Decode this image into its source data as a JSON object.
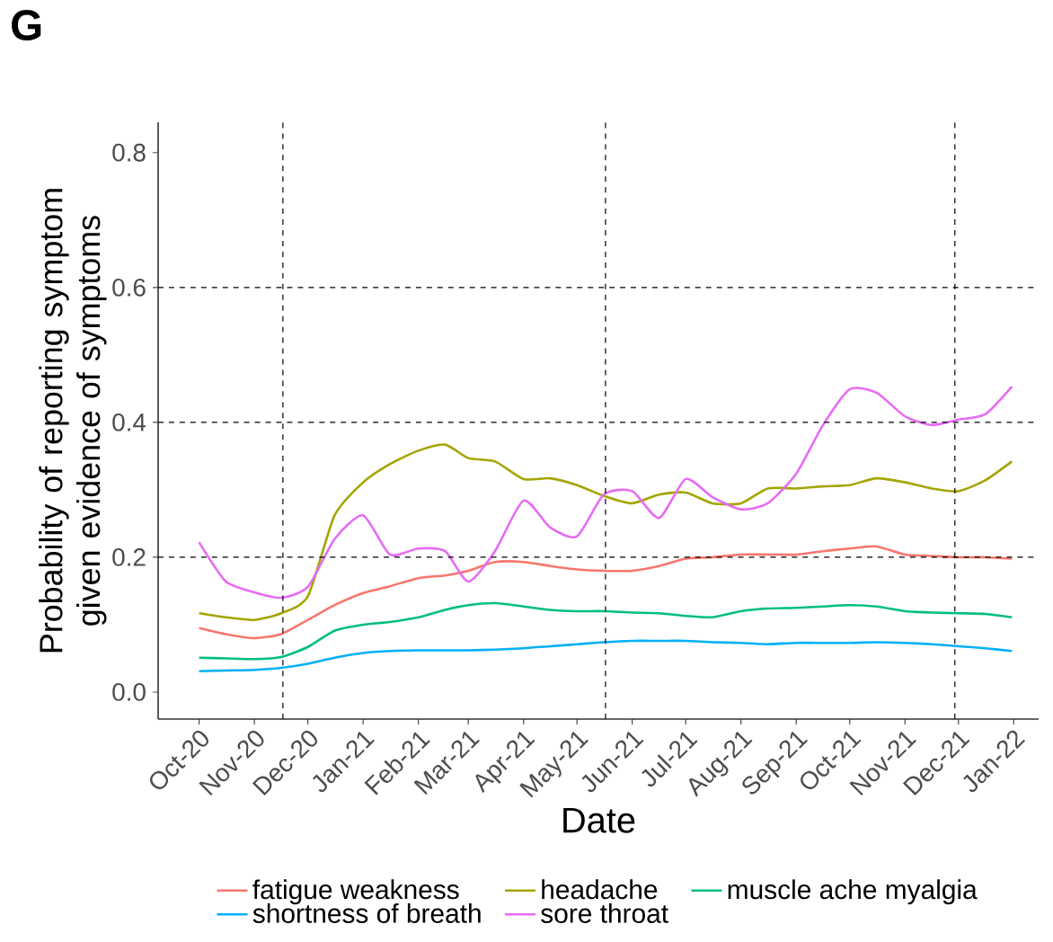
{
  "chart_data": {
    "type": "line",
    "annotations": [
      "G"
    ],
    "xlabel": "Date",
    "ylabel": "Probability of reporting symptom given evidence of symptoms",
    "x": [
      "2020-10-01",
      "2020-10-16",
      "2020-11-01",
      "2020-11-16",
      "2020-12-01",
      "2020-12-16",
      "2021-01-01",
      "2021-01-16",
      "2021-02-01",
      "2021-02-16",
      "2021-03-01",
      "2021-03-16",
      "2021-04-01",
      "2021-04-16",
      "2021-05-01",
      "2021-05-16",
      "2021-06-01",
      "2021-06-16",
      "2021-07-01",
      "2021-07-16",
      "2021-08-01",
      "2021-08-16",
      "2021-09-01",
      "2021-09-16",
      "2021-10-01",
      "2021-10-16",
      "2021-11-01",
      "2021-11-16",
      "2021-12-01",
      "2021-12-16",
      "2021-12-31"
    ],
    "series": [
      {
        "name": "fatigue weakness",
        "color": "#f8766d",
        "values": [
          0.095,
          0.086,
          0.08,
          0.086,
          0.107,
          0.129,
          0.147,
          0.157,
          0.169,
          0.173,
          0.18,
          0.193,
          0.193,
          0.187,
          0.182,
          0.18,
          0.18,
          0.187,
          0.198,
          0.2,
          0.204,
          0.204,
          0.204,
          0.209,
          0.213,
          0.216,
          0.204,
          0.202,
          0.2,
          0.2,
          0.198
        ]
      },
      {
        "name": "headache",
        "color": "#a3a500",
        "values": [
          0.117,
          0.111,
          0.107,
          0.117,
          0.142,
          0.262,
          0.311,
          0.338,
          0.358,
          0.367,
          0.347,
          0.342,
          0.316,
          0.317,
          0.307,
          0.291,
          0.28,
          0.293,
          0.296,
          0.28,
          0.28,
          0.302,
          0.302,
          0.305,
          0.307,
          0.317,
          0.311,
          0.302,
          0.298,
          0.314,
          0.342
        ]
      },
      {
        "name": "muscle ache myalgia",
        "color": "#00bf7d",
        "values": [
          0.051,
          0.05,
          0.049,
          0.052,
          0.067,
          0.091,
          0.1,
          0.104,
          0.111,
          0.122,
          0.129,
          0.132,
          0.127,
          0.122,
          0.12,
          0.12,
          0.118,
          0.117,
          0.113,
          0.111,
          0.12,
          0.124,
          0.125,
          0.127,
          0.129,
          0.127,
          0.12,
          0.118,
          0.117,
          0.116,
          0.111
        ]
      },
      {
        "name": "shortness of breath",
        "color": "#00b0f6",
        "values": [
          0.031,
          0.032,
          0.033,
          0.036,
          0.042,
          0.051,
          0.058,
          0.061,
          0.062,
          0.062,
          0.062,
          0.063,
          0.065,
          0.068,
          0.071,
          0.074,
          0.076,
          0.076,
          0.076,
          0.074,
          0.073,
          0.071,
          0.073,
          0.073,
          0.073,
          0.074,
          0.073,
          0.071,
          0.068,
          0.065,
          0.061
        ]
      },
      {
        "name": "sore throat",
        "color": "#e76bf3",
        "values": [
          0.222,
          0.164,
          0.148,
          0.14,
          0.156,
          0.227,
          0.262,
          0.204,
          0.213,
          0.209,
          0.164,
          0.209,
          0.284,
          0.244,
          0.231,
          0.293,
          0.298,
          0.258,
          0.316,
          0.289,
          0.271,
          0.28,
          0.324,
          0.396,
          0.449,
          0.444,
          0.409,
          0.396,
          0.404,
          0.412,
          0.453
        ]
      }
    ],
    "xlim": [
      "2020-09-08",
      "2022-01-15"
    ],
    "xticks": [
      {
        "value": "2020-10-01",
        "label": "Oct-20"
      },
      {
        "value": "2020-11-01",
        "label": "Nov-20"
      },
      {
        "value": "2020-12-01",
        "label": "Dec-20"
      },
      {
        "value": "2021-01-01",
        "label": "Jan-21"
      },
      {
        "value": "2021-02-01",
        "label": "Feb-21"
      },
      {
        "value": "2021-03-01",
        "label": "Mar-21"
      },
      {
        "value": "2021-04-01",
        "label": "Apr-21"
      },
      {
        "value": "2021-05-01",
        "label": "May-21"
      },
      {
        "value": "2021-06-01",
        "label": "Jun-21"
      },
      {
        "value": "2021-07-01",
        "label": "Jul-21"
      },
      {
        "value": "2021-08-01",
        "label": "Aug-21"
      },
      {
        "value": "2021-09-01",
        "label": "Sep-21"
      },
      {
        "value": "2021-10-01",
        "label": "Oct-21"
      },
      {
        "value": "2021-11-01",
        "label": "Nov-21"
      },
      {
        "value": "2021-12-01",
        "label": "Dec-21"
      },
      {
        "value": "2022-01-01",
        "label": "Jan-22"
      }
    ],
    "ylim": [
      -0.04,
      0.845
    ],
    "yticks": [
      {
        "value": 0,
        "label": "0.0"
      },
      {
        "value": 0.2,
        "label": "0.2"
      },
      {
        "value": 0.4,
        "label": "0.4"
      },
      {
        "value": 0.6,
        "label": "0.6"
      },
      {
        "value": 0.8,
        "label": "0.8"
      }
    ],
    "ref_lines": [
      {
        "axis": "y",
        "value": 0.2,
        "color": "#000000",
        "line_style": "dashed"
      },
      {
        "axis": "y",
        "value": 0.4,
        "color": "#000000",
        "line_style": "dashed"
      },
      {
        "axis": "y",
        "value": 0.6,
        "color": "#000000",
        "line_style": "dashed"
      },
      {
        "axis": "x",
        "value": "2020-11-17",
        "color": "#000000",
        "line_style": "dashed"
      },
      {
        "axis": "x",
        "value": "2021-05-17",
        "color": "#000000",
        "line_style": "dashed"
      },
      {
        "axis": "x",
        "value": "2021-11-29",
        "color": "#000000",
        "line_style": "dashed"
      }
    ],
    "legend": "bottom"
  }
}
